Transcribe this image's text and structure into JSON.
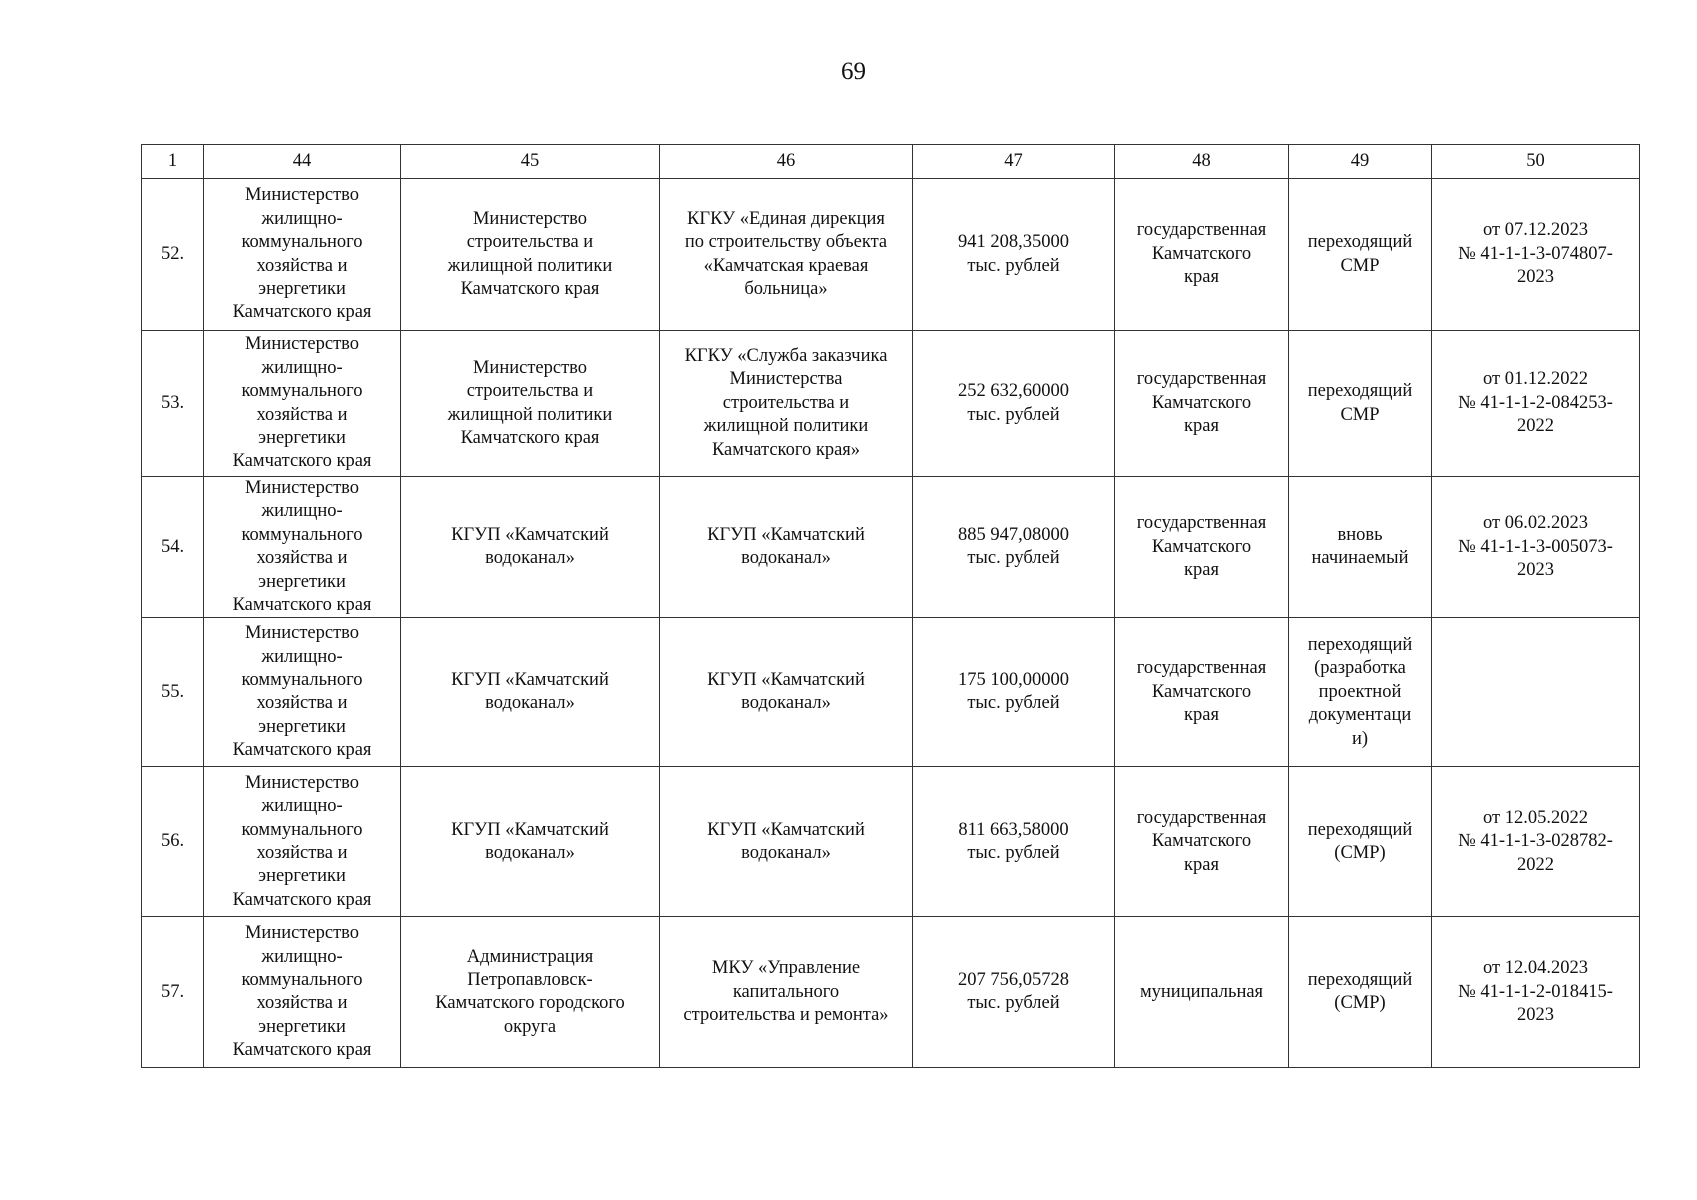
{
  "page_number": "69",
  "table": {
    "headers": [
      "1",
      "44",
      "45",
      "46",
      "47",
      "48",
      "49",
      "50"
    ],
    "rows": [
      [
        "52.",
        "Министерство\nжилищно-\nкоммунального\nхозяйства и\nэнергетики\nКамчатского края",
        "Министерство\nстроительства и\nжилищной политики\nКамчатского края",
        "КГКУ «Единая дирекция\nпо строительству объекта\n«Камчатская краевая\nбольница»",
        "941 208,35000\nтыс. рублей",
        "государственная\nКамчатского\nкрая",
        "переходящий\nСМР",
        "от 07.12.2023\n№ 41-1-1-3-074807-\n2023"
      ],
      [
        "53.",
        "Министерство\nжилищно-\nкоммунального\nхозяйства и\nэнергетики\nКамчатского края",
        "Министерство\nстроительства и\nжилищной политики\nКамчатского края",
        "КГКУ «Служба заказчика\nМинистерства\nстроительства и\nжилищной политики\nКамчатского края»",
        "252 632,60000\nтыс. рублей",
        "государственная\nКамчатского\nкрая",
        "переходящий\nСМР",
        "от 01.12.2022\n№ 41-1-1-2-084253-\n2022"
      ],
      [
        "54.",
        "Министерство\nжилищно-\nкоммунального\nхозяйства и\nэнергетики\nКамчатского края",
        "КГУП «Камчатский\nводоканал»",
        "КГУП «Камчатский\nводоканал»",
        "885 947,08000\nтыс. рублей",
        "государственная\nКамчатского\nкрая",
        "вновь\nначинаемый",
        "от 06.02.2023\n№ 41-1-1-3-005073-\n2023"
      ],
      [
        "55.",
        "Министерство\nжилищно-\nкоммунального\nхозяйства и\nэнергетики\nКамчатского края",
        "КГУП «Камчатский\nводоканал»",
        "КГУП «Камчатский\nводоканал»",
        "175 100,00000\nтыс. рублей",
        "государственная\nКамчатского\nкрая",
        "переходящий\n(разработка\nпроектной\nдокументаци\nи)",
        ""
      ],
      [
        "56.",
        "Министерство\nжилищно-\nкоммунального\nхозяйства и\nэнергетики\nКамчатского края",
        "КГУП «Камчатский\nводоканал»",
        "КГУП «Камчатский\nводоканал»",
        "811 663,58000\nтыс. рублей",
        "государственная\nКамчатского\nкрая",
        "переходящий\n(СМР)",
        "от 12.05.2022\n№ 41-1-1-3-028782-\n2022"
      ],
      [
        "57.",
        "Министерство\nжилищно-\nкоммунального\nхозяйства  и\nэнергетики\nКамчатского края",
        "Администрация\nПетропавловск-\nКамчатского городского\nокруга",
        "МКУ «Управление\nкапитального\nстроительства и ремонта»",
        "207 756,05728\nтыс. рублей",
        "муниципальная",
        "переходящий\n(СМР)",
        "от 12.04.2023\n№ 41-1-1-2-018415-\n2023"
      ]
    ]
  }
}
